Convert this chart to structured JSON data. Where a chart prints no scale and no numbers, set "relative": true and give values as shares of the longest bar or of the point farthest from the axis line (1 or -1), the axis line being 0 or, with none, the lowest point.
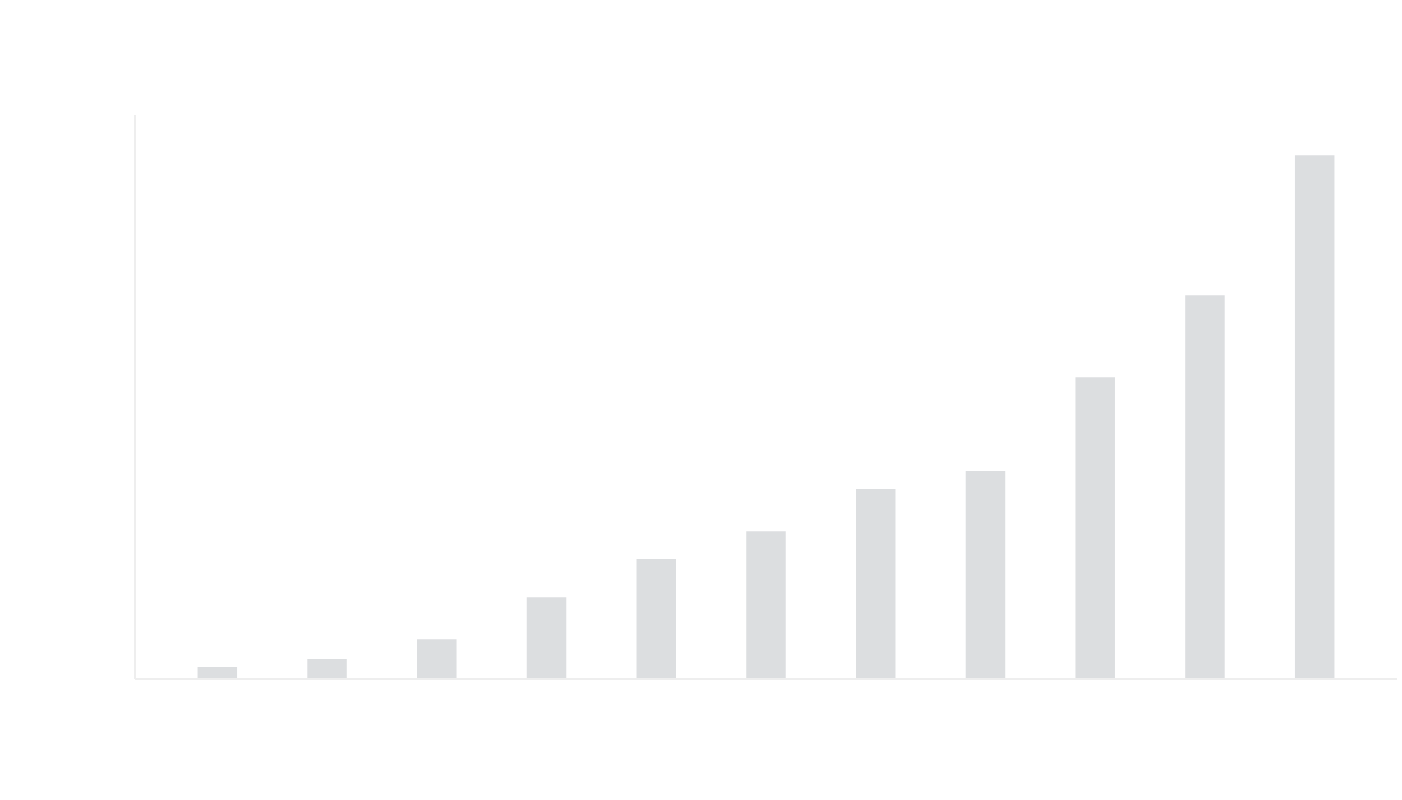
{
  "chart_data": {
    "type": "bar",
    "relative": true,
    "categories": [
      null,
      null,
      null,
      null,
      null,
      null,
      null,
      null,
      null,
      null,
      null
    ],
    "values": [
      0.023,
      0.038,
      0.076,
      0.156,
      0.229,
      0.282,
      0.363,
      0.397,
      0.576,
      0.733,
      1
    ],
    "color": "#dcdee0",
    "grid": false
  }
}
